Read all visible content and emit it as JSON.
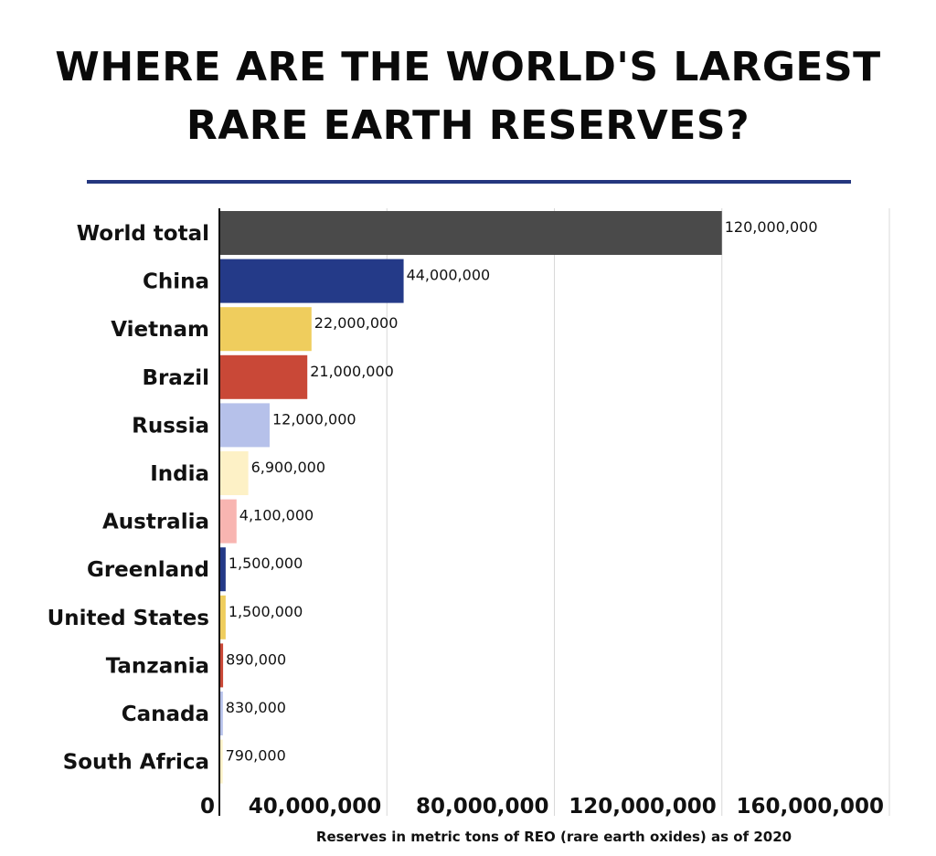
{
  "title_line1": "WHERE ARE THE WORLD'S LARGEST",
  "title_line2": "RARE EARTH RESERVES?",
  "colors": {
    "rule": "#24377f",
    "grid": "#d8d8d8",
    "axis": "#111111"
  },
  "chart_data": {
    "type": "bar",
    "orientation": "horizontal",
    "title": "WHERE ARE THE WORLD'S LARGEST RARE EARTH RESERVES?",
    "xlabel": "Reserves in metric tons of REO (rare earth oxides) as of 2020",
    "ylabel": "",
    "xlim": [
      0,
      160000000
    ],
    "xticks": [
      0,
      40000000,
      80000000,
      120000000,
      160000000
    ],
    "xtick_labels": [
      "0",
      "40,000,000",
      "80,000,000",
      "120,000,000",
      "160,000,000"
    ],
    "grid": true,
    "categories": [
      "World total",
      "China",
      "Vietnam",
      "Brazil",
      "Russia",
      "India",
      "Australia",
      "Greenland",
      "United States",
      "Tanzania",
      "Canada",
      "South Africa"
    ],
    "values": [
      120000000,
      44000000,
      22000000,
      21000000,
      12000000,
      6900000,
      4100000,
      1500000,
      1500000,
      890000,
      830000,
      790000
    ],
    "value_labels": [
      "120,000,000",
      "44,000,000",
      "22,000,000",
      "21,000,000",
      "12,000,000",
      "6,900,000",
      "4,100,000",
      "1,500,000",
      "1,500,000",
      "890,000",
      "830,000",
      "790,000"
    ],
    "bar_colors": [
      "#4a4a4a",
      "#243a88",
      "#efcd5d",
      "#c94837",
      "#b6c1ea",
      "#fdf1c6",
      "#f8b5b1",
      "#243a88",
      "#efcd5d",
      "#c94837",
      "#b6c1ea",
      "#fdf1c6"
    ]
  }
}
